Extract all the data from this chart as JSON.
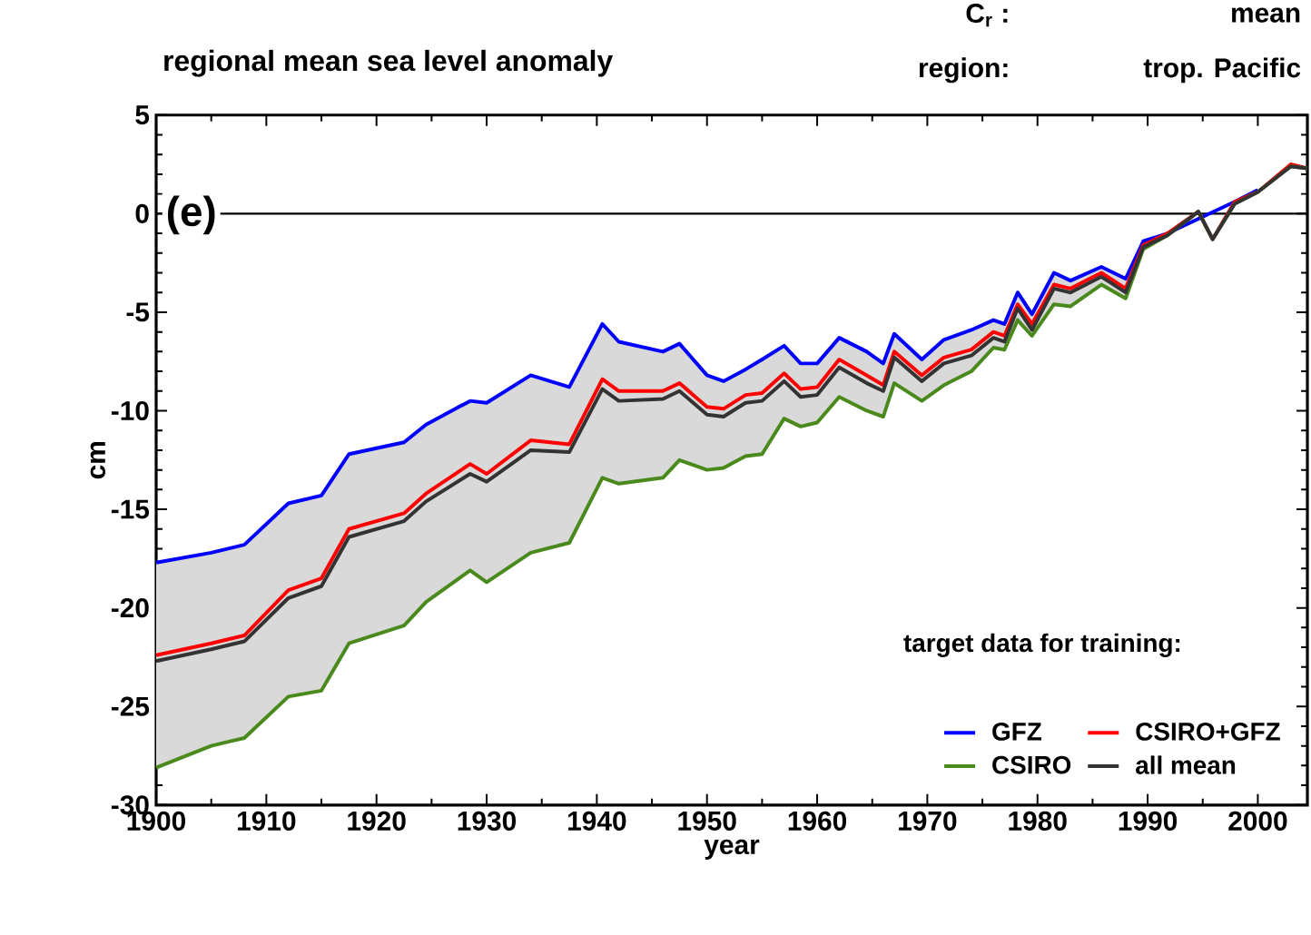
{
  "chart_data": {
    "type": "line",
    "title": "regional mean sea level anomaly",
    "xlabel": "year",
    "ylabel": "cm",
    "legend_title": "target data for training:",
    "annotations": [
      "(e)",
      "C$_{r}$ :",
      "mean",
      "region:",
      "trop. Pacific"
    ],
    "x": [
      1900,
      1905,
      1908,
      1912,
      1915,
      1917.5,
      1922.5,
      1924.5,
      1928.5,
      1930,
      1934,
      1937.5,
      1940.5,
      1942,
      1946,
      1947.5,
      1950,
      1951.5,
      1953.5,
      1955,
      1957,
      1958.5,
      1960,
      1962,
      1964.5,
      1966,
      1967,
      1969.5,
      1971.5,
      1974,
      1976,
      1977,
      1978.2,
      1979.5,
      1981.5,
      1983,
      1985.8,
      1988,
      1989.6,
      1991.8,
      1994.6,
      1995.9,
      1997.9,
      2000,
      2003,
      2004.5
    ],
    "series": [
      {
        "name": "GFZ",
        "color": "#0000ff",
        "values": [
          -17.7,
          -17.2,
          -16.8,
          -14.7,
          -14.3,
          -12.2,
          -11.6,
          -10.7,
          -9.5,
          -9.6,
          -8.2,
          -8.8,
          -5.6,
          -6.5,
          -7.0,
          -6.6,
          -8.2,
          -8.5,
          -7.9,
          -7.4,
          -6.7,
          -7.6,
          -7.6,
          -6.3,
          -7.0,
          -7.6,
          -6.1,
          -7.4,
          -6.4,
          -5.9,
          -5.4,
          -5.6,
          -4.0,
          -5.1,
          -3.0,
          -3.4,
          -2.7,
          -3.3,
          -1.4,
          -1.0,
          null,
          null,
          0.6,
          1.2,
          null,
          null
        ]
      },
      {
        "name": "CSIRO+GFZ",
        "color": "#ff0000",
        "values": [
          -22.4,
          -21.8,
          -21.4,
          -19.1,
          -18.5,
          -16.0,
          -15.2,
          -14.2,
          -12.7,
          -13.2,
          -11.5,
          -11.7,
          -8.4,
          -9.0,
          -9.0,
          -8.6,
          -9.8,
          -9.9,
          -9.2,
          -9.1,
          -8.1,
          -8.9,
          -8.8,
          -7.4,
          -8.2,
          -8.7,
          -7.0,
          -8.2,
          -7.3,
          -6.9,
          -6.0,
          -6.2,
          -4.6,
          -5.6,
          -3.6,
          -3.8,
          -3.0,
          -3.8,
          -1.6,
          -1.0,
          0.1,
          -1.3,
          0.6,
          1.1,
          2.5,
          2.3
        ]
      },
      {
        "name": "CSIRO",
        "color": "#4a8a1c",
        "values": [
          -28.1,
          -27.0,
          -26.6,
          -24.5,
          -24.2,
          -21.8,
          -20.9,
          -19.7,
          -18.1,
          -18.7,
          -17.2,
          -16.7,
          -13.4,
          -13.7,
          -13.4,
          -12.5,
          -13.0,
          -12.9,
          -12.3,
          -12.2,
          -10.4,
          -10.8,
          -10.6,
          -9.3,
          -10.0,
          -10.3,
          -8.6,
          -9.5,
          -8.7,
          -8.0,
          -6.8,
          -6.9,
          -5.4,
          -6.2,
          -4.6,
          -4.7,
          -3.6,
          -4.3,
          -1.8,
          -1.1,
          0.1,
          -1.3,
          0.5,
          1.1,
          2.4,
          2.3
        ]
      },
      {
        "name": "all mean",
        "color": "#333333",
        "values": [
          -22.7,
          -22.1,
          -21.7,
          -19.5,
          -18.9,
          -16.4,
          -15.6,
          -14.6,
          -13.2,
          -13.6,
          -12.0,
          -12.1,
          -8.9,
          -9.5,
          -9.4,
          -9.0,
          -10.2,
          -10.3,
          -9.6,
          -9.5,
          -8.5,
          -9.3,
          -9.2,
          -7.8,
          -8.6,
          -9.0,
          -7.3,
          -8.5,
          -7.6,
          -7.2,
          -6.3,
          -6.5,
          -4.8,
          -5.9,
          -3.8,
          -4.0,
          -3.2,
          -4.0,
          -1.7,
          -1.1,
          0.1,
          -1.3,
          0.5,
          1.1,
          2.4,
          2.3
        ],
        "lower": [
          -28.1,
          -27.0,
          -26.6,
          -24.5,
          -24.2,
          -21.8,
          -20.9,
          -19.7,
          -18.1,
          -18.7,
          -17.2,
          -16.7,
          -13.4,
          -13.7,
          -13.4,
          -12.5,
          -13.0,
          -12.9,
          -12.3,
          -12.2,
          -10.4,
          -10.8,
          -10.6,
          -9.3,
          -10.0,
          -10.3,
          -8.6,
          -9.5,
          -8.7,
          -8.0,
          -6.8,
          -6.9,
          -5.4,
          -6.2,
          -4.6,
          -4.7,
          -3.6,
          -4.3,
          -1.8,
          -1.1,
          0.1,
          -1.3,
          0.5,
          1.1,
          2.4,
          2.3
        ],
        "upper": [
          -17.7,
          -17.2,
          -16.8,
          -14.7,
          -14.3,
          -12.2,
          -11.6,
          -10.7,
          -9.5,
          -9.6,
          -8.2,
          -8.8,
          -5.6,
          -6.5,
          -7.0,
          -6.6,
          -8.2,
          -8.5,
          -7.9,
          -7.4,
          -6.7,
          -7.6,
          -7.6,
          -6.3,
          -7.0,
          -7.6,
          -6.1,
          -7.4,
          -6.4,
          -5.9,
          -5.4,
          -5.6,
          -4.0,
          -5.1,
          -3.0,
          -3.4,
          -2.7,
          -3.3,
          -1.4,
          -1.0,
          0.1,
          -1.3,
          0.6,
          1.2,
          2.5,
          2.3
        ]
      }
    ],
    "xlim": [
      1900,
      2004.5
    ],
    "ylim": [
      -30,
      5
    ],
    "xticks": [
      1900,
      1910,
      1920,
      1930,
      1940,
      1950,
      1960,
      1970,
      1980,
      1990,
      2000
    ],
    "yticks": [
      -30,
      -25,
      -20,
      -15,
      -10,
      -5,
      0,
      5
    ],
    "ref_lines": [
      {
        "axis": "y",
        "value": 0,
        "color": "#000000"
      }
    ],
    "legend": "bottom right",
    "grid": false,
    "marker": "none",
    "line_style": "solid"
  }
}
